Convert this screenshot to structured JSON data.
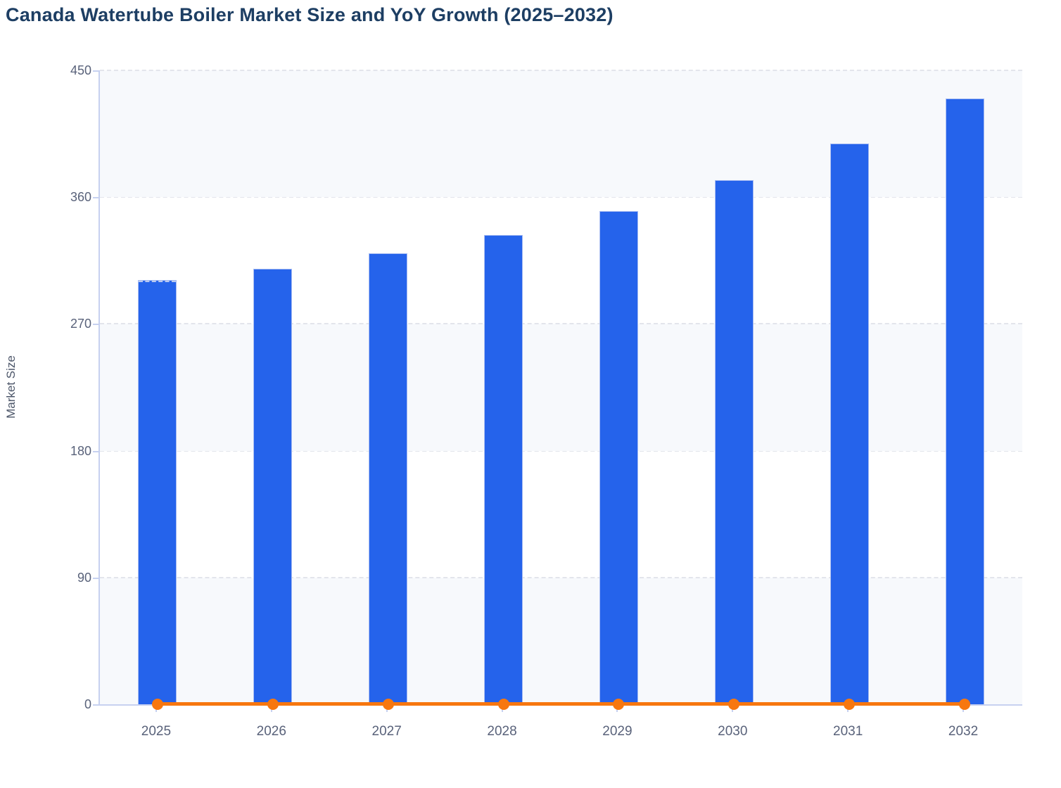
{
  "page": {
    "title": "Canada Watertube Boiler Market Size and YoY Growth (2025–2032)"
  },
  "chart_data": {
    "type": "bar",
    "title": "Canada Watertube Boiler Market Size and YoY Growth (2025–2032)",
    "categories": [
      "2025",
      "2026",
      "2027",
      "2028",
      "2029",
      "2030",
      "2031",
      "2032"
    ],
    "series": [
      {
        "name": "Market Size",
        "type": "bar",
        "values": [
          301,
          309,
          320,
          333,
          350,
          372,
          398,
          430
        ],
        "color": "#2563eb"
      },
      {
        "name": "YoY Growth",
        "type": "line",
        "values": [
          0,
          0,
          0,
          0,
          0,
          0,
          0,
          0
        ],
        "color": "#f7770f",
        "note": "flat orange line with circular markers drawn at ~0 on the Market Size axis"
      }
    ],
    "xlabel": "",
    "ylabel": "Market Size",
    "ylim": [
      0,
      450
    ],
    "yticks": [
      0,
      90,
      180,
      270,
      360,
      450
    ],
    "grid": "dashed horizontal gridlines, alternating horizontal band fill #f7f9fc",
    "legend": "none"
  },
  "colors": {
    "title": "#1d3e63",
    "bar": "#2563eb",
    "bar_border": "#a9bdf2",
    "line": "#f7770f",
    "axis": "#c7d1f0",
    "tick_text": "#59627a",
    "gridline": "#e3e5ec",
    "band": "#f7f9fc",
    "background": "#ffffff"
  }
}
